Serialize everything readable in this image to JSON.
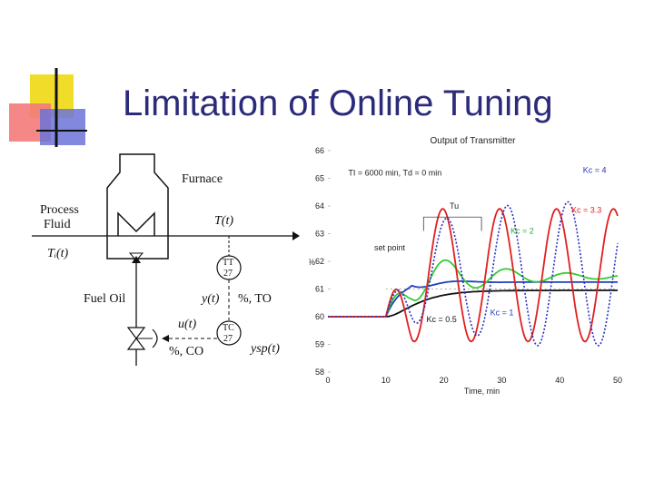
{
  "slide": {
    "title": "Limitation of Online Tuning",
    "accent_colors": {
      "yellow": "#f2dc2a",
      "red": "#e8242a",
      "blue": "#4a56c8",
      "navy": "#2b2b7a"
    }
  },
  "diagram": {
    "furnace_label": "Furnace",
    "process_fluid_line1": "Process",
    "process_fluid_line2": "Fluid",
    "ti_label": "Tᵢ(t)",
    "t_label": "T(t)",
    "tt_line1": "TT",
    "tt_line2": "27",
    "fuel_oil_label": "Fuel Oil",
    "y_label": "y(t)",
    "pct_to_label": "%, TO",
    "u_label": "u(t)",
    "pct_co_label": "%, CO",
    "tc_line1": "TC",
    "tc_line2": "27",
    "ysp_label": "ysp(t)",
    "heater_icon": "heat-exchanger-icon",
    "valve_icon": "control-valve-icon"
  },
  "chart_data": {
    "type": "line",
    "title": "Output of Transmitter",
    "xlabel": "Time, min",
    "ylabel": "%",
    "xlim": [
      0,
      50
    ],
    "ylim": [
      58,
      66
    ],
    "xticks": [
      0,
      10,
      20,
      30,
      40,
      50
    ],
    "yticks": [
      58,
      59,
      60,
      61,
      62,
      63,
      64,
      65,
      66
    ],
    "grid": false,
    "setpoint": 60,
    "step_time": 10,
    "setpoint_after": 61,
    "annotations": {
      "tuning_params": "TI = 6000 min, Td = 0 min",
      "set_point": "set point",
      "tu": "Tu"
    },
    "series": [
      {
        "name": "Kc = 0.5",
        "color": "#111111",
        "style": "solid"
      },
      {
        "name": "Kc = 1",
        "color": "#1f3fbf",
        "style": "solid"
      },
      {
        "name": "Kc = 2",
        "color": "#33cc33",
        "style": "solid"
      },
      {
        "name": "Kc = 3.3",
        "color": "#e02020",
        "style": "solid"
      },
      {
        "name": "Kc = 4",
        "color": "#2a2fc0",
        "style": "dotted"
      }
    ]
  }
}
